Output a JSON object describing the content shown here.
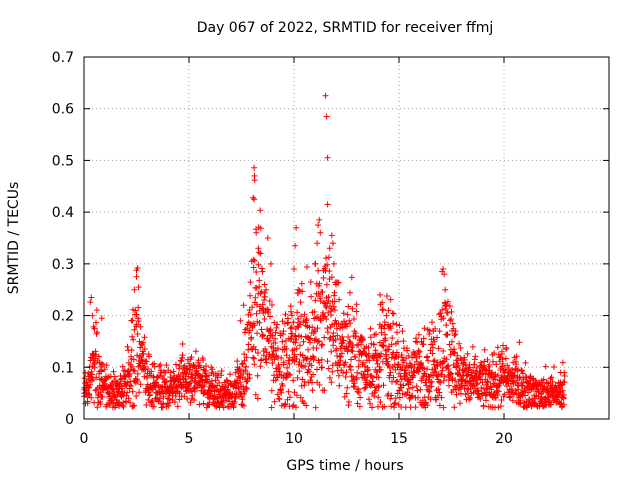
{
  "chart_data": {
    "type": "scatter",
    "title": "Day 067 of 2022, SRMTID for receiver ffmj",
    "xlabel": "GPS time / hours",
    "ylabel": "SRMTID / TECUs",
    "xlim": [
      0,
      25
    ],
    "ylim": [
      0,
      0.7
    ],
    "xticks": [
      0,
      5,
      10,
      15,
      20
    ],
    "xtick_labels": [
      "0",
      "5",
      "10",
      "15",
      "20"
    ],
    "yticks": [
      0,
      0.1,
      0.2,
      0.3,
      0.4,
      0.5,
      0.6,
      0.7
    ],
    "ytick_labels": [
      "0",
      "0.1",
      "0.2",
      "0.3",
      "0.4",
      "0.5",
      "0.6",
      "0.7"
    ],
    "grid": true,
    "marker": "+",
    "color": "#ff0000",
    "series": [
      {
        "name": "SRMTID",
        "envelope": {
          "x": [
            0.0,
            0.3,
            0.5,
            0.8,
            1.0,
            1.5,
            2.0,
            2.2,
            2.5,
            2.8,
            3.0,
            3.5,
            4.0,
            4.5,
            5.0,
            5.5,
            6.0,
            6.5,
            7.0,
            7.5,
            7.8,
            8.0,
            8.2,
            8.5,
            8.8,
            9.0,
            9.5,
            10.0,
            10.3,
            10.7,
            11.0,
            11.3,
            11.5,
            11.7,
            12.0,
            12.5,
            13.0,
            13.5,
            14.0,
            14.3,
            14.7,
            15.0,
            15.5,
            16.0,
            16.5,
            17.0,
            17.3,
            17.6,
            18.0,
            18.5,
            19.0,
            19.5,
            20.0,
            20.5,
            21.0,
            21.5,
            22.0,
            22.5,
            22.9
          ],
          "y_typical": [
            0.06,
            0.07,
            0.09,
            0.08,
            0.06,
            0.05,
            0.06,
            0.1,
            0.14,
            0.1,
            0.07,
            0.06,
            0.06,
            0.07,
            0.08,
            0.07,
            0.06,
            0.05,
            0.05,
            0.07,
            0.12,
            0.18,
            0.22,
            0.2,
            0.16,
            0.12,
            0.1,
            0.12,
            0.15,
            0.13,
            0.16,
            0.2,
            0.24,
            0.2,
            0.16,
            0.14,
            0.12,
            0.1,
            0.1,
            0.13,
            0.11,
            0.09,
            0.08,
            0.09,
            0.1,
            0.13,
            0.15,
            0.12,
            0.08,
            0.07,
            0.07,
            0.07,
            0.08,
            0.07,
            0.06,
            0.05,
            0.05,
            0.05,
            0.05
          ],
          "y_spread": [
            0.03,
            0.04,
            0.06,
            0.05,
            0.03,
            0.025,
            0.03,
            0.06,
            0.08,
            0.05,
            0.035,
            0.03,
            0.03,
            0.035,
            0.04,
            0.035,
            0.03,
            0.025,
            0.025,
            0.04,
            0.07,
            0.1,
            0.12,
            0.1,
            0.09,
            0.07,
            0.06,
            0.07,
            0.09,
            0.07,
            0.09,
            0.11,
            0.12,
            0.1,
            0.08,
            0.07,
            0.06,
            0.05,
            0.06,
            0.07,
            0.06,
            0.05,
            0.045,
            0.05,
            0.06,
            0.07,
            0.09,
            0.06,
            0.04,
            0.035,
            0.035,
            0.035,
            0.04,
            0.035,
            0.03,
            0.025,
            0.025,
            0.025,
            0.025
          ]
        },
        "peaks": [
          {
            "x": 0.35,
            "y": 0.235
          },
          {
            "x": 0.3,
            "y": 0.226
          },
          {
            "x": 0.4,
            "y": 0.2
          },
          {
            "x": 0.45,
            "y": 0.178
          },
          {
            "x": 0.85,
            "y": 0.195
          },
          {
            "x": 2.25,
            "y": 0.19
          },
          {
            "x": 2.4,
            "y": 0.25
          },
          {
            "x": 2.5,
            "y": 0.275
          },
          {
            "x": 2.5,
            "y": 0.288
          },
          {
            "x": 2.55,
            "y": 0.292
          },
          {
            "x": 2.6,
            "y": 0.255
          },
          {
            "x": 4.7,
            "y": 0.145
          },
          {
            "x": 7.45,
            "y": 0.19
          },
          {
            "x": 7.6,
            "y": 0.22
          },
          {
            "x": 8.1,
            "y": 0.486
          },
          {
            "x": 8.12,
            "y": 0.47
          },
          {
            "x": 8.13,
            "y": 0.462
          },
          {
            "x": 8.05,
            "y": 0.428
          },
          {
            "x": 8.1,
            "y": 0.425
          },
          {
            "x": 8.2,
            "y": 0.36
          },
          {
            "x": 8.3,
            "y": 0.33
          },
          {
            "x": 8.4,
            "y": 0.32
          },
          {
            "x": 8.5,
            "y": 0.285
          },
          {
            "x": 8.6,
            "y": 0.26
          },
          {
            "x": 8.75,
            "y": 0.35
          },
          {
            "x": 8.9,
            "y": 0.3
          },
          {
            "x": 9.5,
            "y": 0.17
          },
          {
            "x": 10.0,
            "y": 0.29
          },
          {
            "x": 10.05,
            "y": 0.335
          },
          {
            "x": 10.1,
            "y": 0.37
          },
          {
            "x": 10.2,
            "y": 0.25
          },
          {
            "x": 10.8,
            "y": 0.265
          },
          {
            "x": 11.0,
            "y": 0.3
          },
          {
            "x": 11.1,
            "y": 0.34
          },
          {
            "x": 11.15,
            "y": 0.375
          },
          {
            "x": 11.2,
            "y": 0.385
          },
          {
            "x": 11.25,
            "y": 0.36
          },
          {
            "x": 11.5,
            "y": 0.625
          },
          {
            "x": 11.55,
            "y": 0.585
          },
          {
            "x": 11.6,
            "y": 0.505
          },
          {
            "x": 11.6,
            "y": 0.415
          },
          {
            "x": 11.7,
            "y": 0.33
          },
          {
            "x": 11.8,
            "y": 0.355
          },
          {
            "x": 11.85,
            "y": 0.34
          },
          {
            "x": 11.9,
            "y": 0.3
          },
          {
            "x": 12.0,
            "y": 0.26
          },
          {
            "x": 14.1,
            "y": 0.24
          },
          {
            "x": 14.2,
            "y": 0.225
          },
          {
            "x": 14.4,
            "y": 0.2
          },
          {
            "x": 14.5,
            "y": 0.21
          },
          {
            "x": 17.05,
            "y": 0.285
          },
          {
            "x": 17.1,
            "y": 0.29
          },
          {
            "x": 17.15,
            "y": 0.28
          },
          {
            "x": 17.2,
            "y": 0.25
          },
          {
            "x": 17.25,
            "y": 0.22
          },
          {
            "x": 19.9,
            "y": 0.13
          },
          {
            "x": 20.1,
            "y": 0.135
          },
          {
            "x": 22.7,
            "y": 0.09
          }
        ]
      }
    ]
  }
}
